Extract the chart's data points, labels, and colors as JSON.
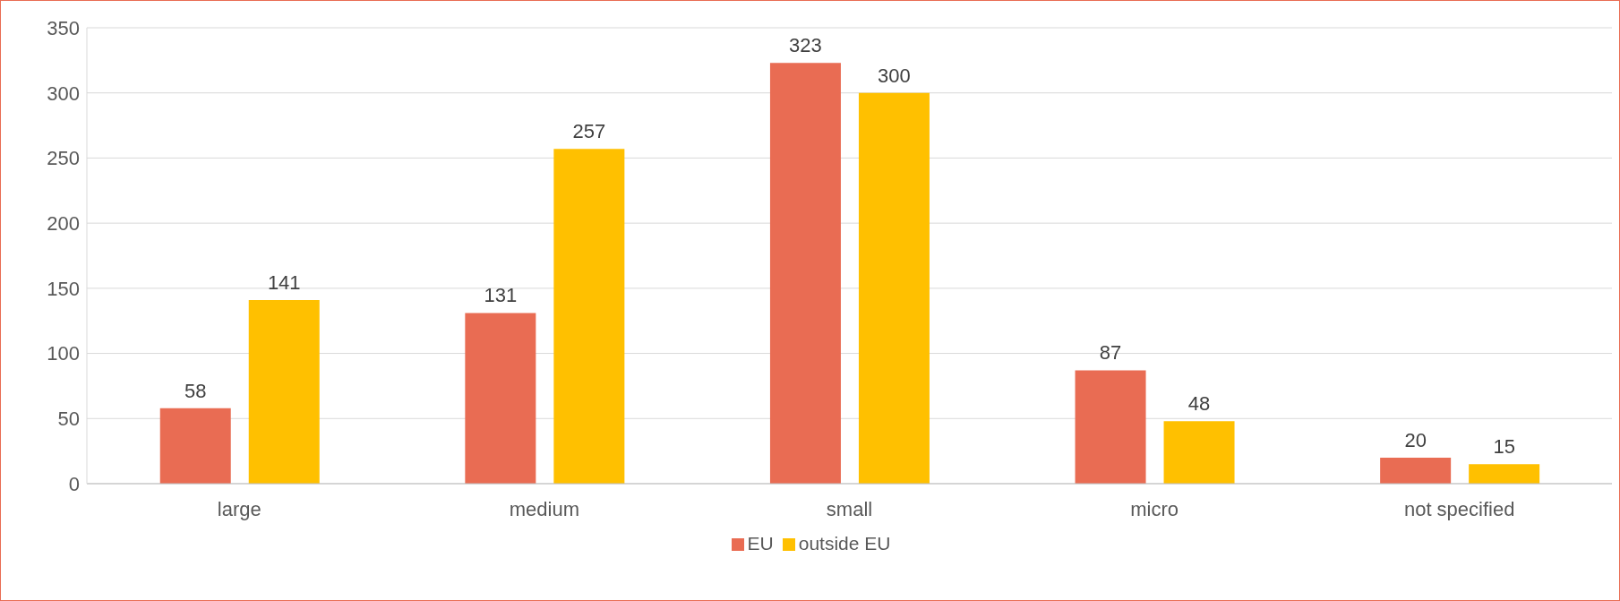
{
  "chart_data": {
    "type": "bar",
    "categories": [
      "large",
      "medium",
      "small",
      "micro",
      "not specified"
    ],
    "series": [
      {
        "name": "EU",
        "color": "#e96c53",
        "values": [
          58,
          131,
          323,
          87,
          20
        ]
      },
      {
        "name": "outside EU",
        "color": "#ffc000",
        "values": [
          141,
          257,
          300,
          48,
          15
        ]
      }
    ],
    "ylim": [
      0,
      350
    ],
    "yticks": [
      0,
      50,
      100,
      150,
      200,
      250,
      300,
      350
    ],
    "grid": "y",
    "legend": "bottom",
    "data_labels": true
  }
}
